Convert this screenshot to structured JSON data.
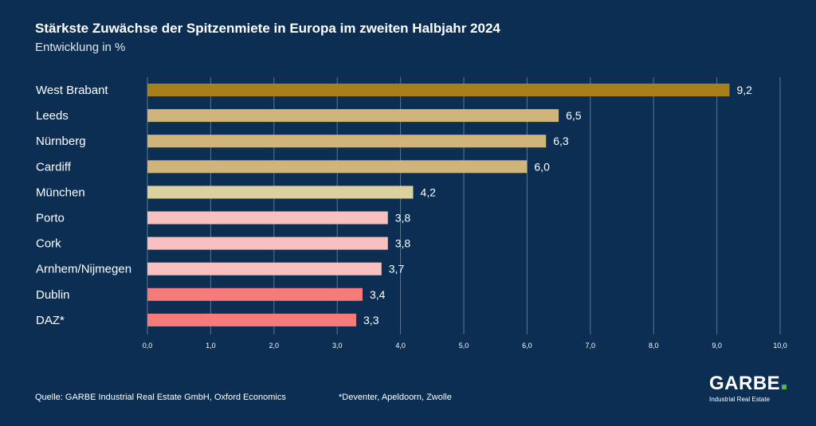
{
  "header": {
    "title": "Stärkste Zuwächse der Spitzenmiete in Europa im zweiten Halbjahr 2024",
    "subtitle": "Entwicklung in %"
  },
  "footer": {
    "source": "Quelle: GARBE Industrial Real Estate GmbH, Oxford Economics",
    "note": "*Deventer, Apeldoorn, Zwolle"
  },
  "logo": {
    "name": "GARBE",
    "tagline": "Industrial Real Estate",
    "dot_color": "#5fb046"
  },
  "chart_data": {
    "type": "bar",
    "orientation": "horizontal",
    "title": "Stärkste Zuwächse der Spitzenmiete in Europa im zweiten Halbjahr 2024",
    "subtitle": "Entwicklung in %",
    "categories": [
      "West Brabant",
      "Leeds",
      "Nürnberg",
      "Cardiff",
      "München",
      "Porto",
      "Cork",
      "Arnhem/Nijmegen",
      "Dublin",
      "DAZ*"
    ],
    "values": [
      9.2,
      6.5,
      6.3,
      6.0,
      4.2,
      3.8,
      3.8,
      3.7,
      3.4,
      3.3
    ],
    "value_labels": [
      "9,2",
      "6,5",
      "6,3",
      "6,0",
      "4,2",
      "3,8",
      "3,8",
      "3,7",
      "3,4",
      "3,3"
    ],
    "bar_colors": [
      "#a87f1a",
      "#cfb57a",
      "#cfb57a",
      "#cfb57a",
      "#ddd09f",
      "#f8c1bf",
      "#f8c1bf",
      "#f8c1bf",
      "#f77a7a",
      "#f77a7a"
    ],
    "xlim": [
      0,
      10
    ],
    "xticks": [
      0,
      1,
      2,
      3,
      4,
      5,
      6,
      7,
      8,
      9,
      10
    ],
    "xtick_labels": [
      "0,0",
      "1,0",
      "2,0",
      "3,0",
      "4,0",
      "5,0",
      "6,0",
      "7,0",
      "8,0",
      "9,0",
      "10,0"
    ],
    "grid": true,
    "background": "#0b2e52",
    "grid_color": "#5d7591"
  }
}
